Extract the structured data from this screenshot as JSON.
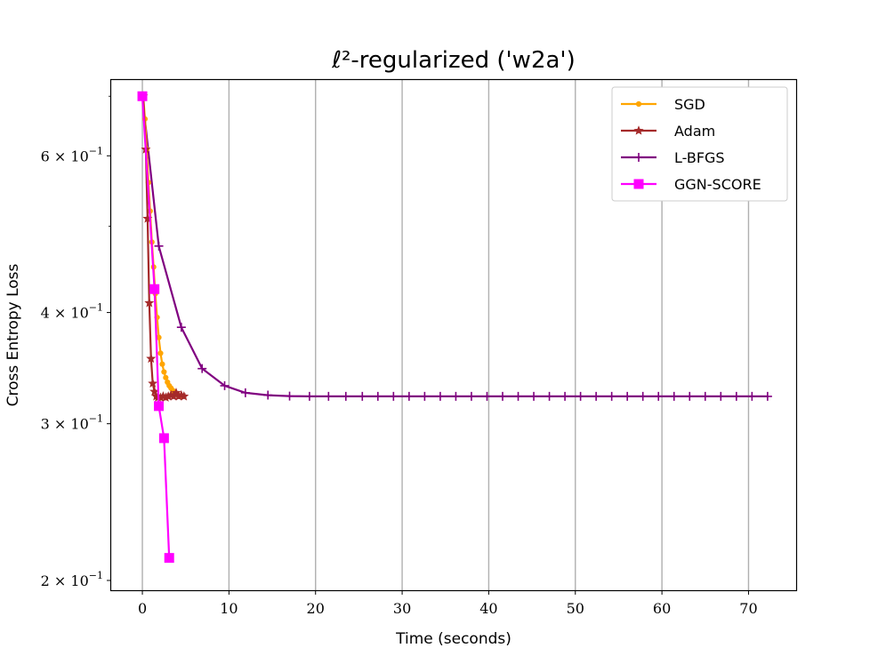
{
  "chart_data": {
    "type": "line",
    "title": "ℓ²-regularized ('w2a')",
    "xlabel": "Time (seconds)",
    "ylabel": "Cross Entropy Loss",
    "xlim": [
      -3.6,
      75.5
    ],
    "ylim": [
      0.195,
      0.73
    ],
    "yscale": "log",
    "grid": "x-major",
    "legend": "top-right",
    "x_ticks": [
      0,
      10,
      20,
      30,
      40,
      50,
      60,
      70
    ],
    "x_tick_labels": [
      "0",
      "10",
      "20",
      "30",
      "40",
      "50",
      "60",
      "70"
    ],
    "y_ticks": [
      0.2,
      0.3,
      0.4,
      0.6
    ],
    "y_tick_labels": [
      {
        "base": "2 × 10",
        "exp": "−1"
      },
      {
        "base": "3 × 10",
        "exp": "−1"
      },
      {
        "base": "4 × 10",
        "exp": "−1"
      },
      {
        "base": "6 × 10",
        "exp": "−1"
      }
    ],
    "series": [
      {
        "name": "SGD",
        "color": "#FFA500",
        "marker": "dot",
        "x": [
          0.1,
          0.3,
          0.5,
          0.7,
          0.9,
          1.1,
          1.3,
          1.5,
          1.7,
          1.9,
          2.1,
          2.3,
          2.5,
          2.7,
          2.9,
          3.1,
          3.3,
          3.5,
          3.7,
          3.9,
          4.1,
          4.3
        ],
        "y": [
          0.7,
          0.66,
          0.61,
          0.56,
          0.52,
          0.48,
          0.45,
          0.42,
          0.395,
          0.375,
          0.36,
          0.35,
          0.343,
          0.338,
          0.334,
          0.331,
          0.329,
          0.327,
          0.325,
          0.324,
          0.323,
          0.322
        ]
      },
      {
        "name": "Adam",
        "color": "#A52A2A",
        "marker": "star",
        "x": [
          0.1,
          0.4,
          0.6,
          0.8,
          1.0,
          1.2,
          1.4,
          1.6,
          1.8,
          2.1,
          2.4,
          2.7,
          3.0,
          3.3,
          3.6,
          3.9,
          4.2,
          4.5,
          4.8
        ],
        "y": [
          0.7,
          0.61,
          0.51,
          0.41,
          0.355,
          0.333,
          0.326,
          0.322,
          0.321,
          0.321,
          0.322,
          0.321,
          0.322,
          0.323,
          0.322,
          0.325,
          0.322,
          0.323,
          0.322
        ]
      },
      {
        "name": "L-BFGS",
        "color": "#800080",
        "marker": "plus",
        "x": [
          0.0,
          1.9,
          4.5,
          6.9,
          9.5,
          11.9,
          14.5,
          17.0,
          19.3,
          21.5,
          23.5,
          25.4,
          27.2,
          29.0,
          30.8,
          32.6,
          34.4,
          36.2,
          38.0,
          39.8,
          41.6,
          43.4,
          45.2,
          47.0,
          48.8,
          50.6,
          52.4,
          54.2,
          56.0,
          57.8,
          59.6,
          61.4,
          63.2,
          65.0,
          66.8,
          68.6,
          70.4,
          72.2
        ],
        "y": [
          0.7,
          0.475,
          0.385,
          0.346,
          0.331,
          0.325,
          0.323,
          0.3222,
          0.322,
          0.322,
          0.322,
          0.322,
          0.322,
          0.322,
          0.322,
          0.322,
          0.322,
          0.322,
          0.322,
          0.322,
          0.322,
          0.322,
          0.322,
          0.322,
          0.322,
          0.322,
          0.322,
          0.322,
          0.322,
          0.322,
          0.322,
          0.322,
          0.322,
          0.322,
          0.322,
          0.322,
          0.322,
          0.322
        ]
      },
      {
        "name": "GGN-SCORE",
        "color": "#FF00FF",
        "marker": "square",
        "x": [
          0.0,
          1.4,
          1.9,
          2.5,
          3.1
        ],
        "y": [
          0.7,
          0.425,
          0.314,
          0.289,
          0.212
        ]
      }
    ]
  }
}
